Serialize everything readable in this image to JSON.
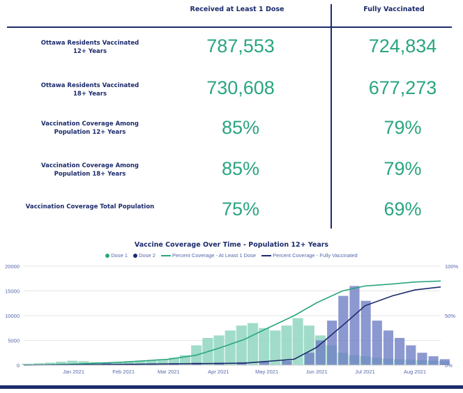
{
  "table": {
    "headers": {
      "dose1": "Received at Least 1 Dose",
      "full": "Fully Vaccinated"
    },
    "rows": [
      {
        "label1": "Ottawa Residents Vaccinated",
        "label2": "12+ Years",
        "dose1": "787,553",
        "full": "724,834"
      },
      {
        "label1": "Ottawa Residents Vaccinated",
        "label2": "18+ Years",
        "dose1": "730,608",
        "full": "677,273"
      },
      {
        "label1": "Vaccination Coverage Among",
        "label2": "Population 12+ Years",
        "dose1": "85%",
        "full": "79%"
      },
      {
        "label1": "Vaccination Coverage Among",
        "label2": "Population 18+ Years",
        "dose1": "85%",
        "full": "79%"
      },
      {
        "label1": "Vaccination Coverage Total Population",
        "label2": "",
        "dose1": "75%",
        "full": "69%"
      }
    ]
  },
  "colors": {
    "navy": "#1b2a6b",
    "green": "#2aa580",
    "dose1_bar": "#8fd6bf",
    "dose2_bar": "#6f7fc4"
  },
  "chart_data": {
    "type": "bar",
    "title": "Vaccine Coverage Over Time - Population 12+ Years",
    "legend": [
      "Dose 1",
      "Dose 2",
      "Percent Coverage - At Least 1 Dose",
      "Percent Coverage - Fully Vaccinated"
    ],
    "legend_placement": "top-center",
    "x_ticks": [
      "Jan 2021",
      "Feb 2021",
      "Mar 2021",
      "Apr 2021",
      "May 2021",
      "Jun 2021",
      "Jul 2021",
      "Aug 2021"
    ],
    "y_ticks": [
      "0",
      "5000",
      "10000",
      "15000",
      "20000"
    ],
    "y2_ticks": [
      "0%",
      "50%",
      "100%"
    ],
    "ylim": [
      0,
      20000
    ],
    "y2lim": [
      0,
      100
    ],
    "x_range": [
      "2020-12-15",
      "2021-08-31"
    ],
    "dose1_weekly": [
      {
        "week": "2020-12-14",
        "value": 300
      },
      {
        "week": "2020-12-21",
        "value": 400
      },
      {
        "week": "2020-12-28",
        "value": 500
      },
      {
        "week": "2021-01-04",
        "value": 700
      },
      {
        "week": "2021-01-11",
        "value": 900
      },
      {
        "week": "2021-01-18",
        "value": 800
      },
      {
        "week": "2021-01-25",
        "value": 600
      },
      {
        "week": "2021-02-01",
        "value": 500
      },
      {
        "week": "2021-02-08",
        "value": 600
      },
      {
        "week": "2021-02-15",
        "value": 800
      },
      {
        "week": "2021-02-22",
        "value": 900
      },
      {
        "week": "2021-03-01",
        "value": 1000
      },
      {
        "week": "2021-03-08",
        "value": 1200
      },
      {
        "week": "2021-03-15",
        "value": 1500
      },
      {
        "week": "2021-03-22",
        "value": 2000
      },
      {
        "week": "2021-03-29",
        "value": 4000
      },
      {
        "week": "2021-04-05",
        "value": 5500
      },
      {
        "week": "2021-04-12",
        "value": 6000
      },
      {
        "week": "2021-04-19",
        "value": 7000
      },
      {
        "week": "2021-04-26",
        "value": 8000
      },
      {
        "week": "2021-05-03",
        "value": 8500
      },
      {
        "week": "2021-05-10",
        "value": 7500
      },
      {
        "week": "2021-05-17",
        "value": 7000
      },
      {
        "week": "2021-05-24",
        "value": 8000
      },
      {
        "week": "2021-05-31",
        "value": 9500
      },
      {
        "week": "2021-06-07",
        "value": 8000
      },
      {
        "week": "2021-06-14",
        "value": 6000
      },
      {
        "week": "2021-06-21",
        "value": 4000
      },
      {
        "week": "2021-06-28",
        "value": 2500
      },
      {
        "week": "2021-07-05",
        "value": 2000
      },
      {
        "week": "2021-07-12",
        "value": 1800
      },
      {
        "week": "2021-07-19",
        "value": 1500
      },
      {
        "week": "2021-07-26",
        "value": 1300
      },
      {
        "week": "2021-08-02",
        "value": 1200
      },
      {
        "week": "2021-08-09",
        "value": 1100
      },
      {
        "week": "2021-08-16",
        "value": 1000
      },
      {
        "week": "2021-08-23",
        "value": 900
      },
      {
        "week": "2021-08-30",
        "value": 800
      }
    ],
    "dose2_weekly": [
      {
        "week": "2020-12-14",
        "value": 0
      },
      {
        "week": "2021-01-04",
        "value": 100
      },
      {
        "week": "2021-01-18",
        "value": 300
      },
      {
        "week": "2021-02-01",
        "value": 400
      },
      {
        "week": "2021-02-15",
        "value": 300
      },
      {
        "week": "2021-03-01",
        "value": 300
      },
      {
        "week": "2021-03-15",
        "value": 400
      },
      {
        "week": "2021-03-29",
        "value": 500
      },
      {
        "week": "2021-04-12",
        "value": 500
      },
      {
        "week": "2021-04-26",
        "value": 600
      },
      {
        "week": "2021-05-10",
        "value": 700
      },
      {
        "week": "2021-05-24",
        "value": 900
      },
      {
        "week": "2021-06-07",
        "value": 2500
      },
      {
        "week": "2021-06-14",
        "value": 5000
      },
      {
        "week": "2021-06-21",
        "value": 9000
      },
      {
        "week": "2021-06-28",
        "value": 14000
      },
      {
        "week": "2021-07-05",
        "value": 16000
      },
      {
        "week": "2021-07-12",
        "value": 13000
      },
      {
        "week": "2021-07-19",
        "value": 9000
      },
      {
        "week": "2021-07-26",
        "value": 7000
      },
      {
        "week": "2021-08-02",
        "value": 5500
      },
      {
        "week": "2021-08-09",
        "value": 4000
      },
      {
        "week": "2021-08-16",
        "value": 2500
      },
      {
        "week": "2021-08-23",
        "value": 1800
      },
      {
        "week": "2021-08-30",
        "value": 1200
      }
    ],
    "coverage_dose1": [
      {
        "date": "2020-12-15",
        "pct": 0
      },
      {
        "date": "2021-01-15",
        "pct": 1
      },
      {
        "date": "2021-02-15",
        "pct": 3
      },
      {
        "date": "2021-03-15",
        "pct": 6
      },
      {
        "date": "2021-04-01",
        "pct": 10
      },
      {
        "date": "2021-04-15",
        "pct": 17
      },
      {
        "date": "2021-05-01",
        "pct": 26
      },
      {
        "date": "2021-05-15",
        "pct": 37
      },
      {
        "date": "2021-06-01",
        "pct": 50
      },
      {
        "date": "2021-06-15",
        "pct": 63
      },
      {
        "date": "2021-07-01",
        "pct": 75
      },
      {
        "date": "2021-07-15",
        "pct": 80
      },
      {
        "date": "2021-08-01",
        "pct": 82
      },
      {
        "date": "2021-08-15",
        "pct": 84
      },
      {
        "date": "2021-08-31",
        "pct": 85
      }
    ],
    "coverage_full": [
      {
        "date": "2020-12-15",
        "pct": 0
      },
      {
        "date": "2021-03-01",
        "pct": 1
      },
      {
        "date": "2021-05-01",
        "pct": 2
      },
      {
        "date": "2021-06-01",
        "pct": 6
      },
      {
        "date": "2021-06-15",
        "pct": 18
      },
      {
        "date": "2021-07-01",
        "pct": 40
      },
      {
        "date": "2021-07-15",
        "pct": 60
      },
      {
        "date": "2021-08-01",
        "pct": 70
      },
      {
        "date": "2021-08-15",
        "pct": 76
      },
      {
        "date": "2021-08-31",
        "pct": 79
      }
    ]
  }
}
